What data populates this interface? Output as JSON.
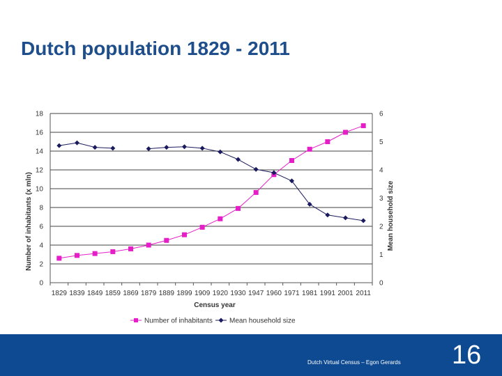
{
  "slide": {
    "title": "Dutch population 1829 - 2011",
    "footer_text": "Dutch Virtual Census – Egon Gerards",
    "page_number": "16"
  },
  "colors": {
    "title": "#1f4e8c",
    "footer_band": "#0d4a91",
    "inhabitants": "#e61ec8",
    "household": "#1a1a5e",
    "gridline": "#000000",
    "axis_text": "#333333"
  },
  "chart_data": {
    "type": "line",
    "xlabel": "Census year",
    "ylabel_left": "Number of inhabitants (x mln)",
    "ylabel_right": "Mean household size",
    "categories": [
      "1829",
      "1839",
      "1849",
      "1859",
      "1869",
      "1879",
      "1889",
      "1899",
      "1909",
      "1920",
      "1930",
      "1947",
      "1960",
      "1971",
      "1981",
      "1991",
      "2001",
      "2011"
    ],
    "yticks_left": [
      "0",
      "2",
      "4",
      "6",
      "8",
      "10",
      "12",
      "14",
      "16",
      "18"
    ],
    "yticks_right": [
      "0",
      "1",
      "2",
      "3",
      "4",
      "5",
      "6"
    ],
    "ylim_left": [
      0,
      18
    ],
    "ylim_right": [
      0,
      6
    ],
    "grid": true,
    "legend_position": "bottom",
    "series": [
      {
        "name": "Number of inhabitants",
        "axis": "left",
        "marker": "square",
        "values": [
          2.6,
          2.9,
          3.1,
          3.3,
          3.6,
          4.0,
          4.5,
          5.1,
          5.9,
          6.8,
          7.9,
          9.6,
          11.5,
          13.0,
          14.2,
          15.0,
          16.0,
          16.7
        ]
      },
      {
        "name": "Mean household size",
        "axis": "right",
        "marker": "diamond",
        "values": [
          4.86,
          4.96,
          4.8,
          4.77,
          null,
          4.75,
          4.8,
          4.82,
          4.77,
          4.64,
          4.37,
          4.02,
          3.9,
          3.61,
          2.78,
          2.4,
          2.3,
          2.2
        ]
      }
    ]
  }
}
